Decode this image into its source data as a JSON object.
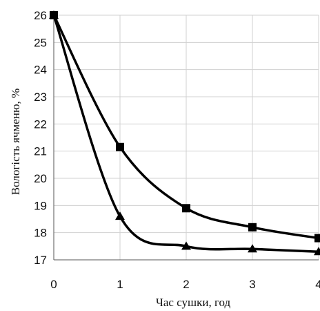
{
  "chart_data": {
    "type": "line",
    "title": "",
    "xlabel": "Час сушки, год",
    "ylabel": "Вологість ячменю, %",
    "x_ticks": [
      0,
      1,
      2,
      3,
      4
    ],
    "y_ticks": [
      17,
      18,
      19,
      20,
      21,
      22,
      23,
      24,
      25,
      26
    ],
    "xlim": [
      0,
      4
    ],
    "ylim": [
      17,
      26
    ],
    "grid": true,
    "smooth": true,
    "legend": "none",
    "series": [
      {
        "marker": "square",
        "color": "#000000",
        "x": [
          0,
          1,
          2,
          3,
          4
        ],
        "y": [
          26,
          21.15,
          18.9,
          18.2,
          17.8
        ]
      },
      {
        "marker": "triangle",
        "color": "#000000",
        "x": [
          0,
          1,
          2,
          3,
          4
        ],
        "y": [
          26,
          18.6,
          17.5,
          17.4,
          17.3
        ]
      }
    ]
  }
}
